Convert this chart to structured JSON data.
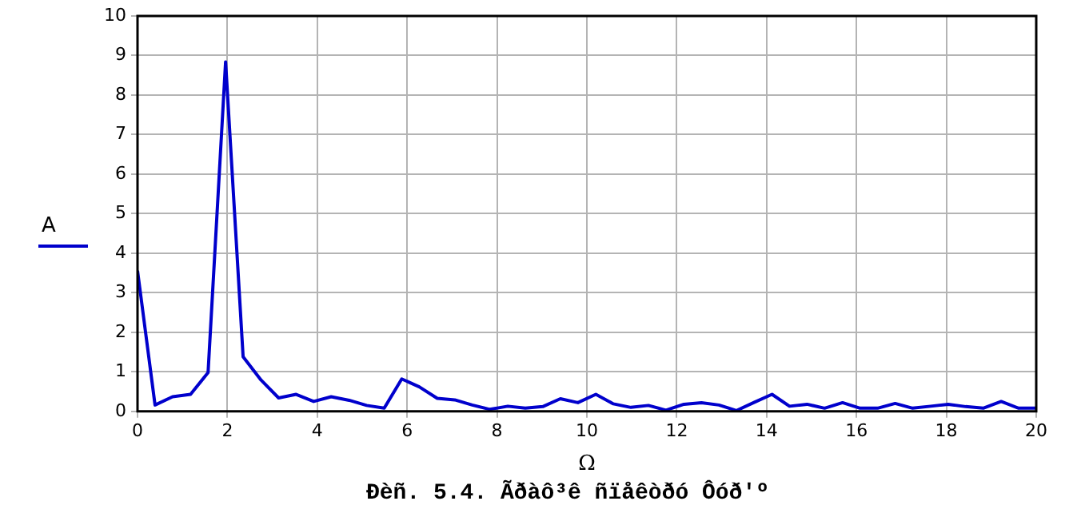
{
  "chart_data": {
    "type": "line",
    "title": "Đèñ. 5.4. Ãðàô³ê ñïåêòðó Ôóð'º",
    "xlabel": "Ω",
    "x": [
      0,
      0.39,
      0.78,
      1.18,
      1.57,
      1.96,
      2.35,
      2.75,
      3.14,
      3.53,
      3.92,
      4.31,
      4.71,
      5.1,
      5.49,
      5.88,
      6.27,
      6.67,
      7.06,
      7.45,
      7.84,
      8.24,
      8.63,
      9.02,
      9.41,
      9.8,
      10.2,
      10.59,
      10.98,
      11.37,
      11.76,
      12.16,
      12.55,
      12.94,
      13.33,
      13.73,
      14.12,
      14.51,
      14.9,
      15.29,
      15.69,
      16.08,
      16.47,
      16.86,
      17.25,
      17.65,
      18.04,
      18.43,
      18.82,
      19.22,
      19.61,
      20
    ],
    "series": [
      {
        "name": "A",
        "color": "#0000cc",
        "values": [
          3.56,
          0.16,
          0.37,
          0.43,
          0.98,
          8.84,
          1.38,
          0.79,
          0.34,
          0.43,
          0.25,
          0.37,
          0.28,
          0.15,
          0.08,
          0.82,
          0.62,
          0.33,
          0.29,
          0.16,
          0.05,
          0.13,
          0.08,
          0.12,
          0.32,
          0.22,
          0.43,
          0.19,
          0.1,
          0.15,
          0.03,
          0.18,
          0.22,
          0.16,
          0.02,
          0.23,
          0.43,
          0.13,
          0.18,
          0.08,
          0.22,
          0.08,
          0.08,
          0.2,
          0.08,
          0.13,
          0.18,
          0.12,
          0.08,
          0.25,
          0.08,
          0.08
        ]
      }
    ],
    "xlim": [
      0,
      20
    ],
    "xticks": [
      0,
      2,
      4,
      6,
      8,
      10,
      12,
      14,
      16,
      18,
      20
    ],
    "ylim": [
      0,
      10
    ],
    "yticks": [
      0,
      1,
      2,
      3,
      4,
      5,
      6,
      7,
      8,
      9,
      10
    ],
    "grid": true,
    "legend": "left",
    "marker": "none",
    "line_style": "solid"
  }
}
